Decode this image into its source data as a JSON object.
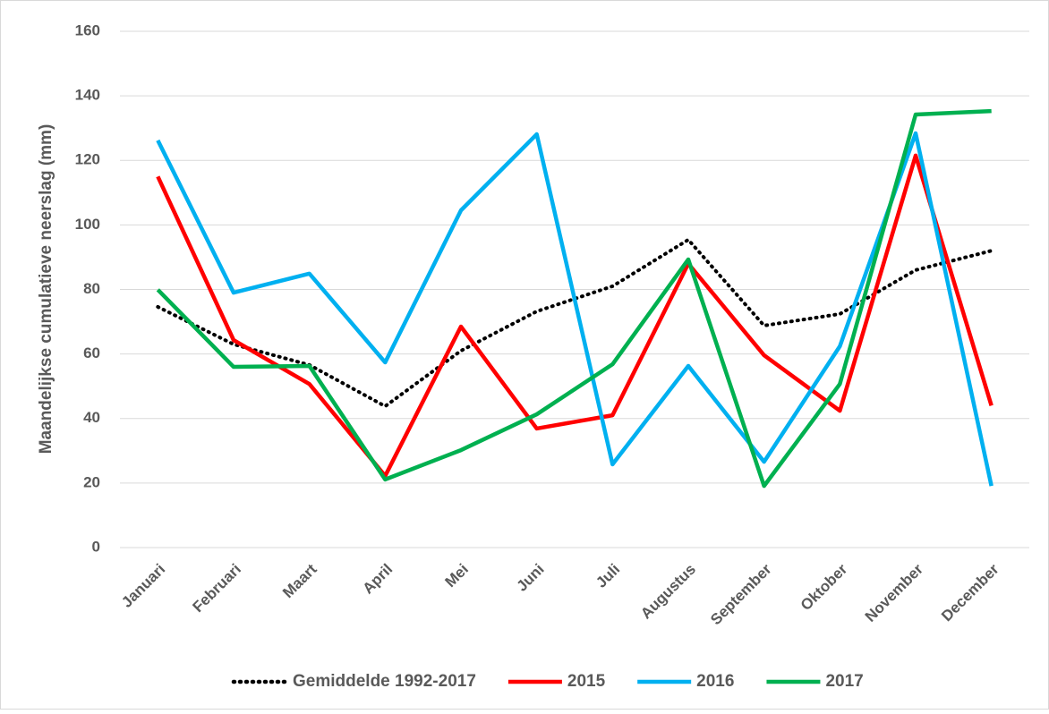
{
  "chart_data": {
    "type": "line",
    "y_label": "Maandelijkse cumulatieve neerslag (mm)",
    "categories": [
      "Januari",
      "Februari",
      "Maart",
      "April",
      "Mei",
      "Juni",
      "Juli",
      "Augustus",
      "September",
      "Oktober",
      "November",
      "December"
    ],
    "series": [
      {
        "name": "Gemiddelde 1992-2017",
        "color": "#000000",
        "style": "dotted",
        "values": [
          74.6,
          63,
          56.6,
          43.8,
          61,
          73.2,
          81,
          95.4,
          68.8,
          72.4,
          86,
          92
        ]
      },
      {
        "name": "2015",
        "color": "#ff0000",
        "style": "solid",
        "values": [
          115,
          64.3,
          50.7,
          22.2,
          68.5,
          36.9,
          41,
          88,
          59.6,
          42.4,
          121.5,
          44
        ]
      },
      {
        "name": "2016",
        "color": "#00b0f0",
        "style": "solid",
        "values": [
          126.2,
          79,
          84.9,
          57.4,
          104.5,
          128.1,
          25.8,
          56.3,
          26.6,
          62.4,
          128.4,
          19.1
        ]
      },
      {
        "name": "2017",
        "color": "#00b050",
        "style": "solid",
        "values": [
          79.9,
          56,
          56.3,
          21.1,
          30.2,
          41.3,
          56.8,
          89.3,
          19.1,
          50.7,
          134.2,
          135.3
        ]
      }
    ],
    "ylim": [
      0,
      160
    ],
    "yticks": [
      0,
      20,
      40,
      60,
      80,
      100,
      120,
      140,
      160
    ],
    "grid": true,
    "legend": "bottom"
  }
}
